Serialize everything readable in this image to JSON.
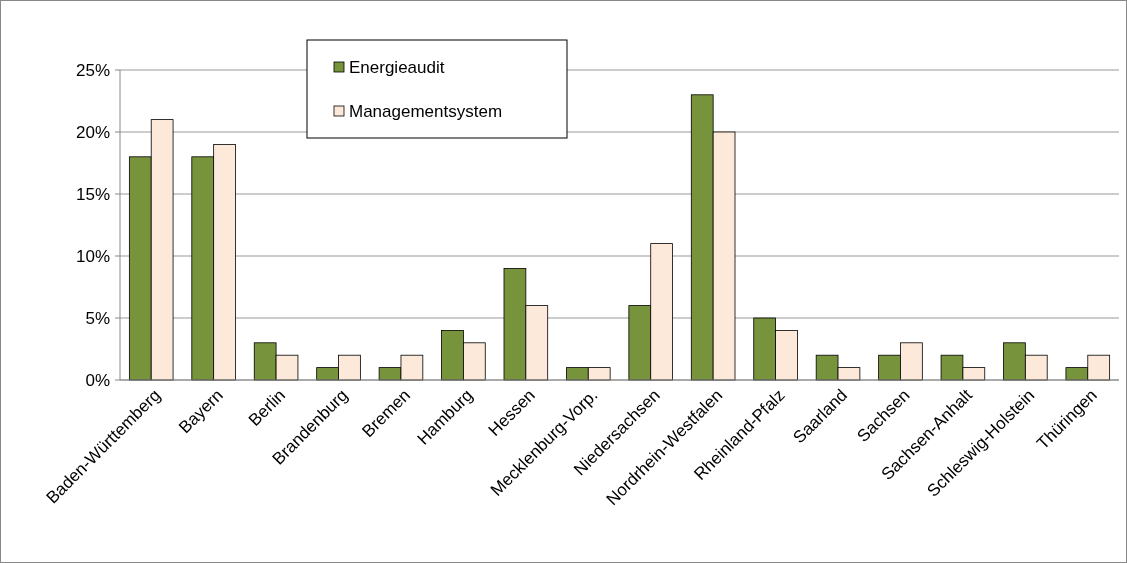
{
  "chart_data": {
    "type": "bar",
    "categories": [
      "Baden-Württemberg",
      "Bayern",
      "Berlin",
      "Brandenburg",
      "Bremen",
      "Hamburg",
      "Hessen",
      "Mecklenburg-Vorp.",
      "Niedersachsen",
      "Nordrhein-Westfalen",
      "Rheinland-Pfalz",
      "Saarland",
      "Sachsen",
      "Sachsen-Anhalt",
      "Schleswig-Holstein",
      "Thüringen"
    ],
    "series": [
      {
        "name": "Energieaudit",
        "color": "#77933c",
        "values": [
          18,
          18,
          3,
          1,
          1,
          4,
          9,
          1,
          6,
          23,
          5,
          2,
          2,
          2,
          3,
          1
        ]
      },
      {
        "name": "Managementsystem",
        "color": "#fde9d9",
        "values": [
          21,
          19,
          2,
          2,
          2,
          3,
          6,
          1,
          11,
          20,
          4,
          1,
          3,
          1,
          2,
          2
        ]
      }
    ],
    "ylim": [
      0,
      25
    ],
    "yticks": [
      {
        "value": 0,
        "label": "0%"
      },
      {
        "value": 5,
        "label": "5%"
      },
      {
        "value": 10,
        "label": "10%"
      },
      {
        "value": 15,
        "label": "15%"
      },
      {
        "value": 20,
        "label": "20%"
      },
      {
        "value": 25,
        "label": "25%"
      }
    ],
    "grid": "y",
    "legend": "top left"
  }
}
